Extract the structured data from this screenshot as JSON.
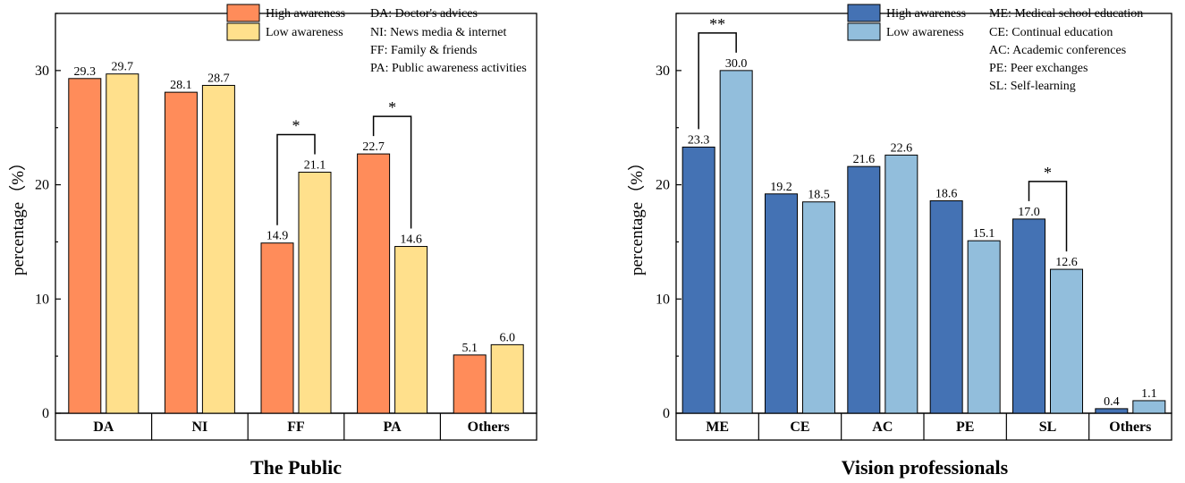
{
  "chart_data": [
    {
      "type": "bar",
      "title": "The Public",
      "xlabel": "",
      "ylabel": "percentage（%）",
      "ylim": [
        0,
        35
      ],
      "yticks": [
        0,
        10,
        20,
        30
      ],
      "categories": [
        "DA",
        "NI",
        "FF",
        "PA",
        "Others"
      ],
      "series": [
        {
          "name": "High awareness",
          "color": "#FF8C5A",
          "values": [
            29.3,
            28.1,
            14.9,
            22.7,
            5.1
          ],
          "labels": [
            "29.3",
            "28.1",
            "14.9",
            "22.7",
            "5.1"
          ]
        },
        {
          "name": "Low awareness",
          "color": "#FFE08C",
          "values": [
            29.7,
            28.7,
            21.1,
            14.6,
            6.0
          ],
          "labels": [
            "29.7",
            "28.7",
            "21.1",
            "14.6",
            "6.0"
          ]
        }
      ],
      "significance": [
        {
          "category_index": 2,
          "mark": "*"
        },
        {
          "category_index": 3,
          "mark": "*"
        }
      ],
      "abbreviations": [
        "DA: Doctor's advices",
        "NI: News media & internet",
        "FF: Family & friends",
        "PA: Public awareness activities"
      ]
    },
    {
      "type": "bar",
      "title": "Vision professionals",
      "xlabel": "",
      "ylabel": "percentage（%）",
      "ylim": [
        0,
        35
      ],
      "yticks": [
        0,
        10,
        20,
        30
      ],
      "categories": [
        "ME",
        "CE",
        "AC",
        "PE",
        "SL",
        "Others"
      ],
      "series": [
        {
          "name": "High awareness",
          "color": "#4472B4",
          "values": [
            23.3,
            19.2,
            21.6,
            18.6,
            17.0,
            0.4
          ],
          "labels": [
            "23.3",
            "19.2",
            "21.6",
            "18.6",
            "17.0",
            "0.4"
          ]
        },
        {
          "name": "Low awareness",
          "color": "#92BEDC",
          "values": [
            30.0,
            18.5,
            22.6,
            15.1,
            12.6,
            1.1
          ],
          "labels": [
            "30.0",
            "18.5",
            "22.6",
            "15.1",
            "12.6",
            "1.1"
          ]
        }
      ],
      "significance": [
        {
          "category_index": 0,
          "mark": "**"
        },
        {
          "category_index": 4,
          "mark": "*"
        }
      ],
      "abbreviations": [
        "ME: Medical school education",
        "CE: Continual education",
        "AC: Academic conferences",
        "PE: Peer exchanges",
        "SL: Self-learning"
      ]
    }
  ]
}
